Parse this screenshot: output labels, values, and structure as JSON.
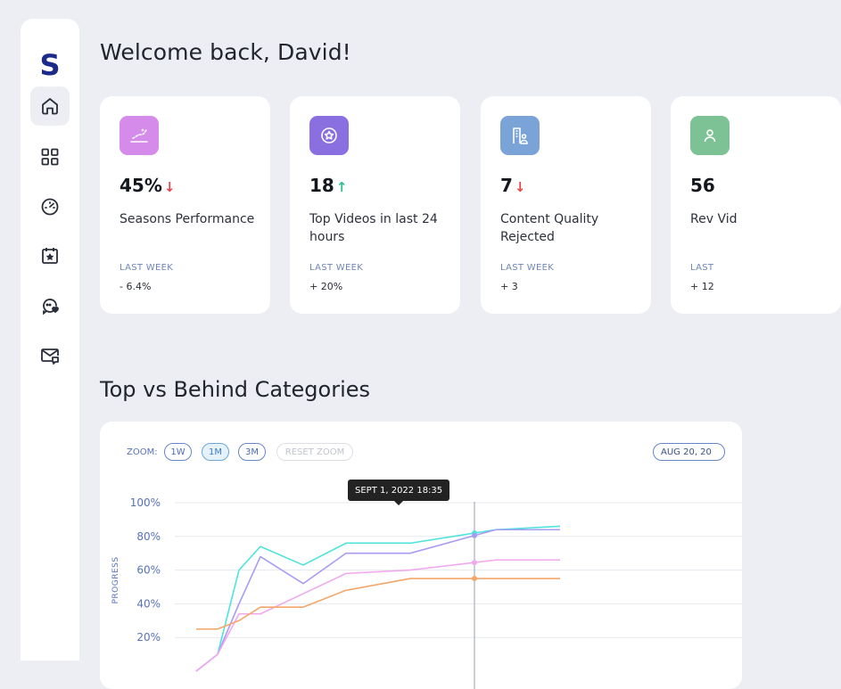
{
  "sidebar": {
    "logo": "S",
    "items": [
      {
        "icon": "home-icon",
        "active": true
      },
      {
        "icon": "grid-icon",
        "active": false
      },
      {
        "icon": "gauge-icon",
        "active": false
      },
      {
        "icon": "calendar-star-icon",
        "active": false
      },
      {
        "icon": "chat-heart-icon",
        "active": false
      },
      {
        "icon": "mail-chat-icon",
        "active": false
      }
    ]
  },
  "header": {
    "welcome": "Welcome back, David!"
  },
  "stats": [
    {
      "value": "45%",
      "trend": "down",
      "arrow": "↓",
      "label": "Seasons Performance",
      "period": "LAST WEEK",
      "change": "- 6.4%",
      "icon": "chart-sparkle-icon",
      "color": "#d48be9"
    },
    {
      "value": "18",
      "trend": "up",
      "arrow": "↑",
      "label": "Top Videos in last 24 hours",
      "period": "LAST WEEK",
      "change": "+ 20%",
      "icon": "star-badge-icon",
      "color": "#8a6fe0"
    },
    {
      "value": "7",
      "trend": "down",
      "arrow": "↓",
      "label": "Content Quality Rejected",
      "period": "LAST WEEK",
      "change": "+ 3",
      "icon": "building-user-icon",
      "color": "#7aa4d8"
    },
    {
      "value": "56",
      "trend": "",
      "arrow": "",
      "label": "Rev Vid",
      "period": "LAST",
      "change": "+ 12",
      "icon": "user-icon",
      "color": "#7dc295"
    }
  ],
  "section": {
    "title": "Top vs Behind Categories"
  },
  "chart_controls": {
    "zoom_label": "ZOOM:",
    "buttons": [
      {
        "label": "1W",
        "active": false
      },
      {
        "label": "1M",
        "active": true
      },
      {
        "label": "3M",
        "active": false
      },
      {
        "label": "RESET ZOOM",
        "active": false,
        "disabled": true
      }
    ],
    "date_range": "AUG 20, 20"
  },
  "tooltip": {
    "text": "SEPT 1, 2022  18:35"
  },
  "colors": {
    "up": "#2fbf8f",
    "down": "#e8474a",
    "grid": "#e6e8ee",
    "axis_text": "#5672b8"
  },
  "chart_data": {
    "type": "line",
    "ylabel": "PROGRESS",
    "ylim": [
      0,
      100
    ],
    "yticks": [
      "20%",
      "40%",
      "60%",
      "80%",
      "100%"
    ],
    "x": [
      0.5,
      1,
      1.5,
      2,
      3,
      4,
      5.5,
      7.5,
      9
    ],
    "series": [
      {
        "color": "#4fe3dc",
        "values": [
          0,
          10,
          60,
          74,
          63,
          76,
          76,
          84,
          86
        ]
      },
      {
        "color": "#a79cf3",
        "values": [
          0,
          10,
          40,
          68,
          52,
          70,
          70,
          84,
          84
        ]
      },
      {
        "color": "#f2a8ee",
        "values": [
          0,
          10,
          34,
          34,
          46,
          58,
          60,
          66,
          66
        ]
      },
      {
        "color": "#f4a76a",
        "values": [
          25,
          25,
          30,
          38,
          38,
          48,
          55,
          55,
          55
        ]
      }
    ]
  }
}
